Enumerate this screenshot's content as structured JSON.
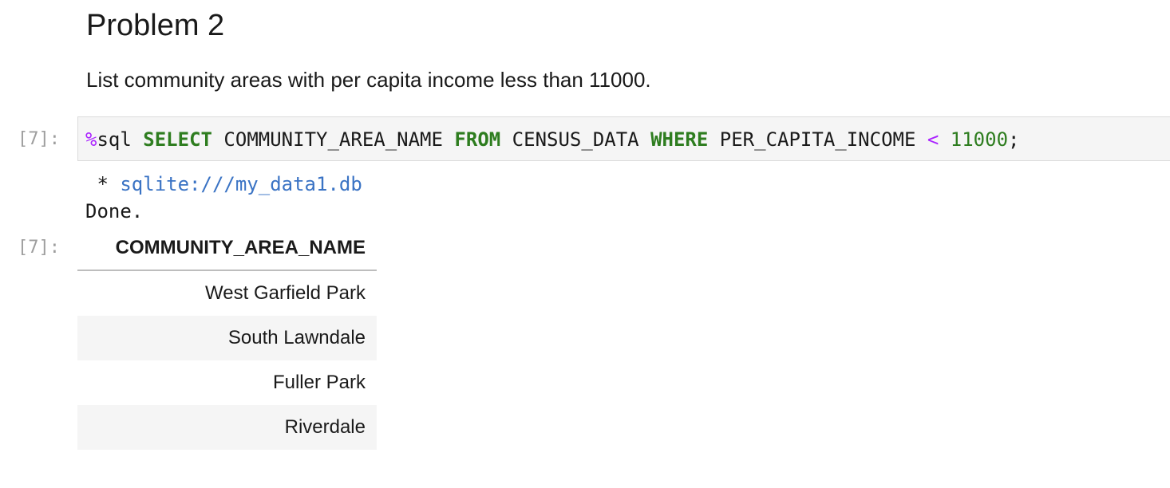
{
  "markdown": {
    "heading": "Problem 2",
    "text": "List community areas with per capita income less than 11000."
  },
  "input_cell": {
    "prompt": "[7]:",
    "code": {
      "magic": "%",
      "magic_name": "sql",
      "kw_select": "SELECT",
      "column": "COMMUNITY_AREA_NAME",
      "kw_from": "FROM",
      "table": "CENSUS_DATA",
      "kw_where": "WHERE",
      "field": "PER_CAPITA_INCOME",
      "operator": "<",
      "value": "11000",
      "terminator": ";"
    }
  },
  "output_cell": {
    "prompt": "[7]:",
    "stream": {
      "bullet": " * ",
      "connection": "sqlite:///my_data1.db",
      "status": "Done."
    },
    "table": {
      "header": "COMMUNITY_AREA_NAME",
      "rows": [
        "West Garfield Park",
        "South Lawndale",
        "Fuller Park",
        "Riverdale"
      ]
    }
  },
  "colors": {
    "keyword": "#2e7d1f",
    "magic": "#aa22ff",
    "connection_link": "#3a73c4",
    "prompt": "#9e9e9e",
    "row_stripe": "#f5f5f5"
  }
}
